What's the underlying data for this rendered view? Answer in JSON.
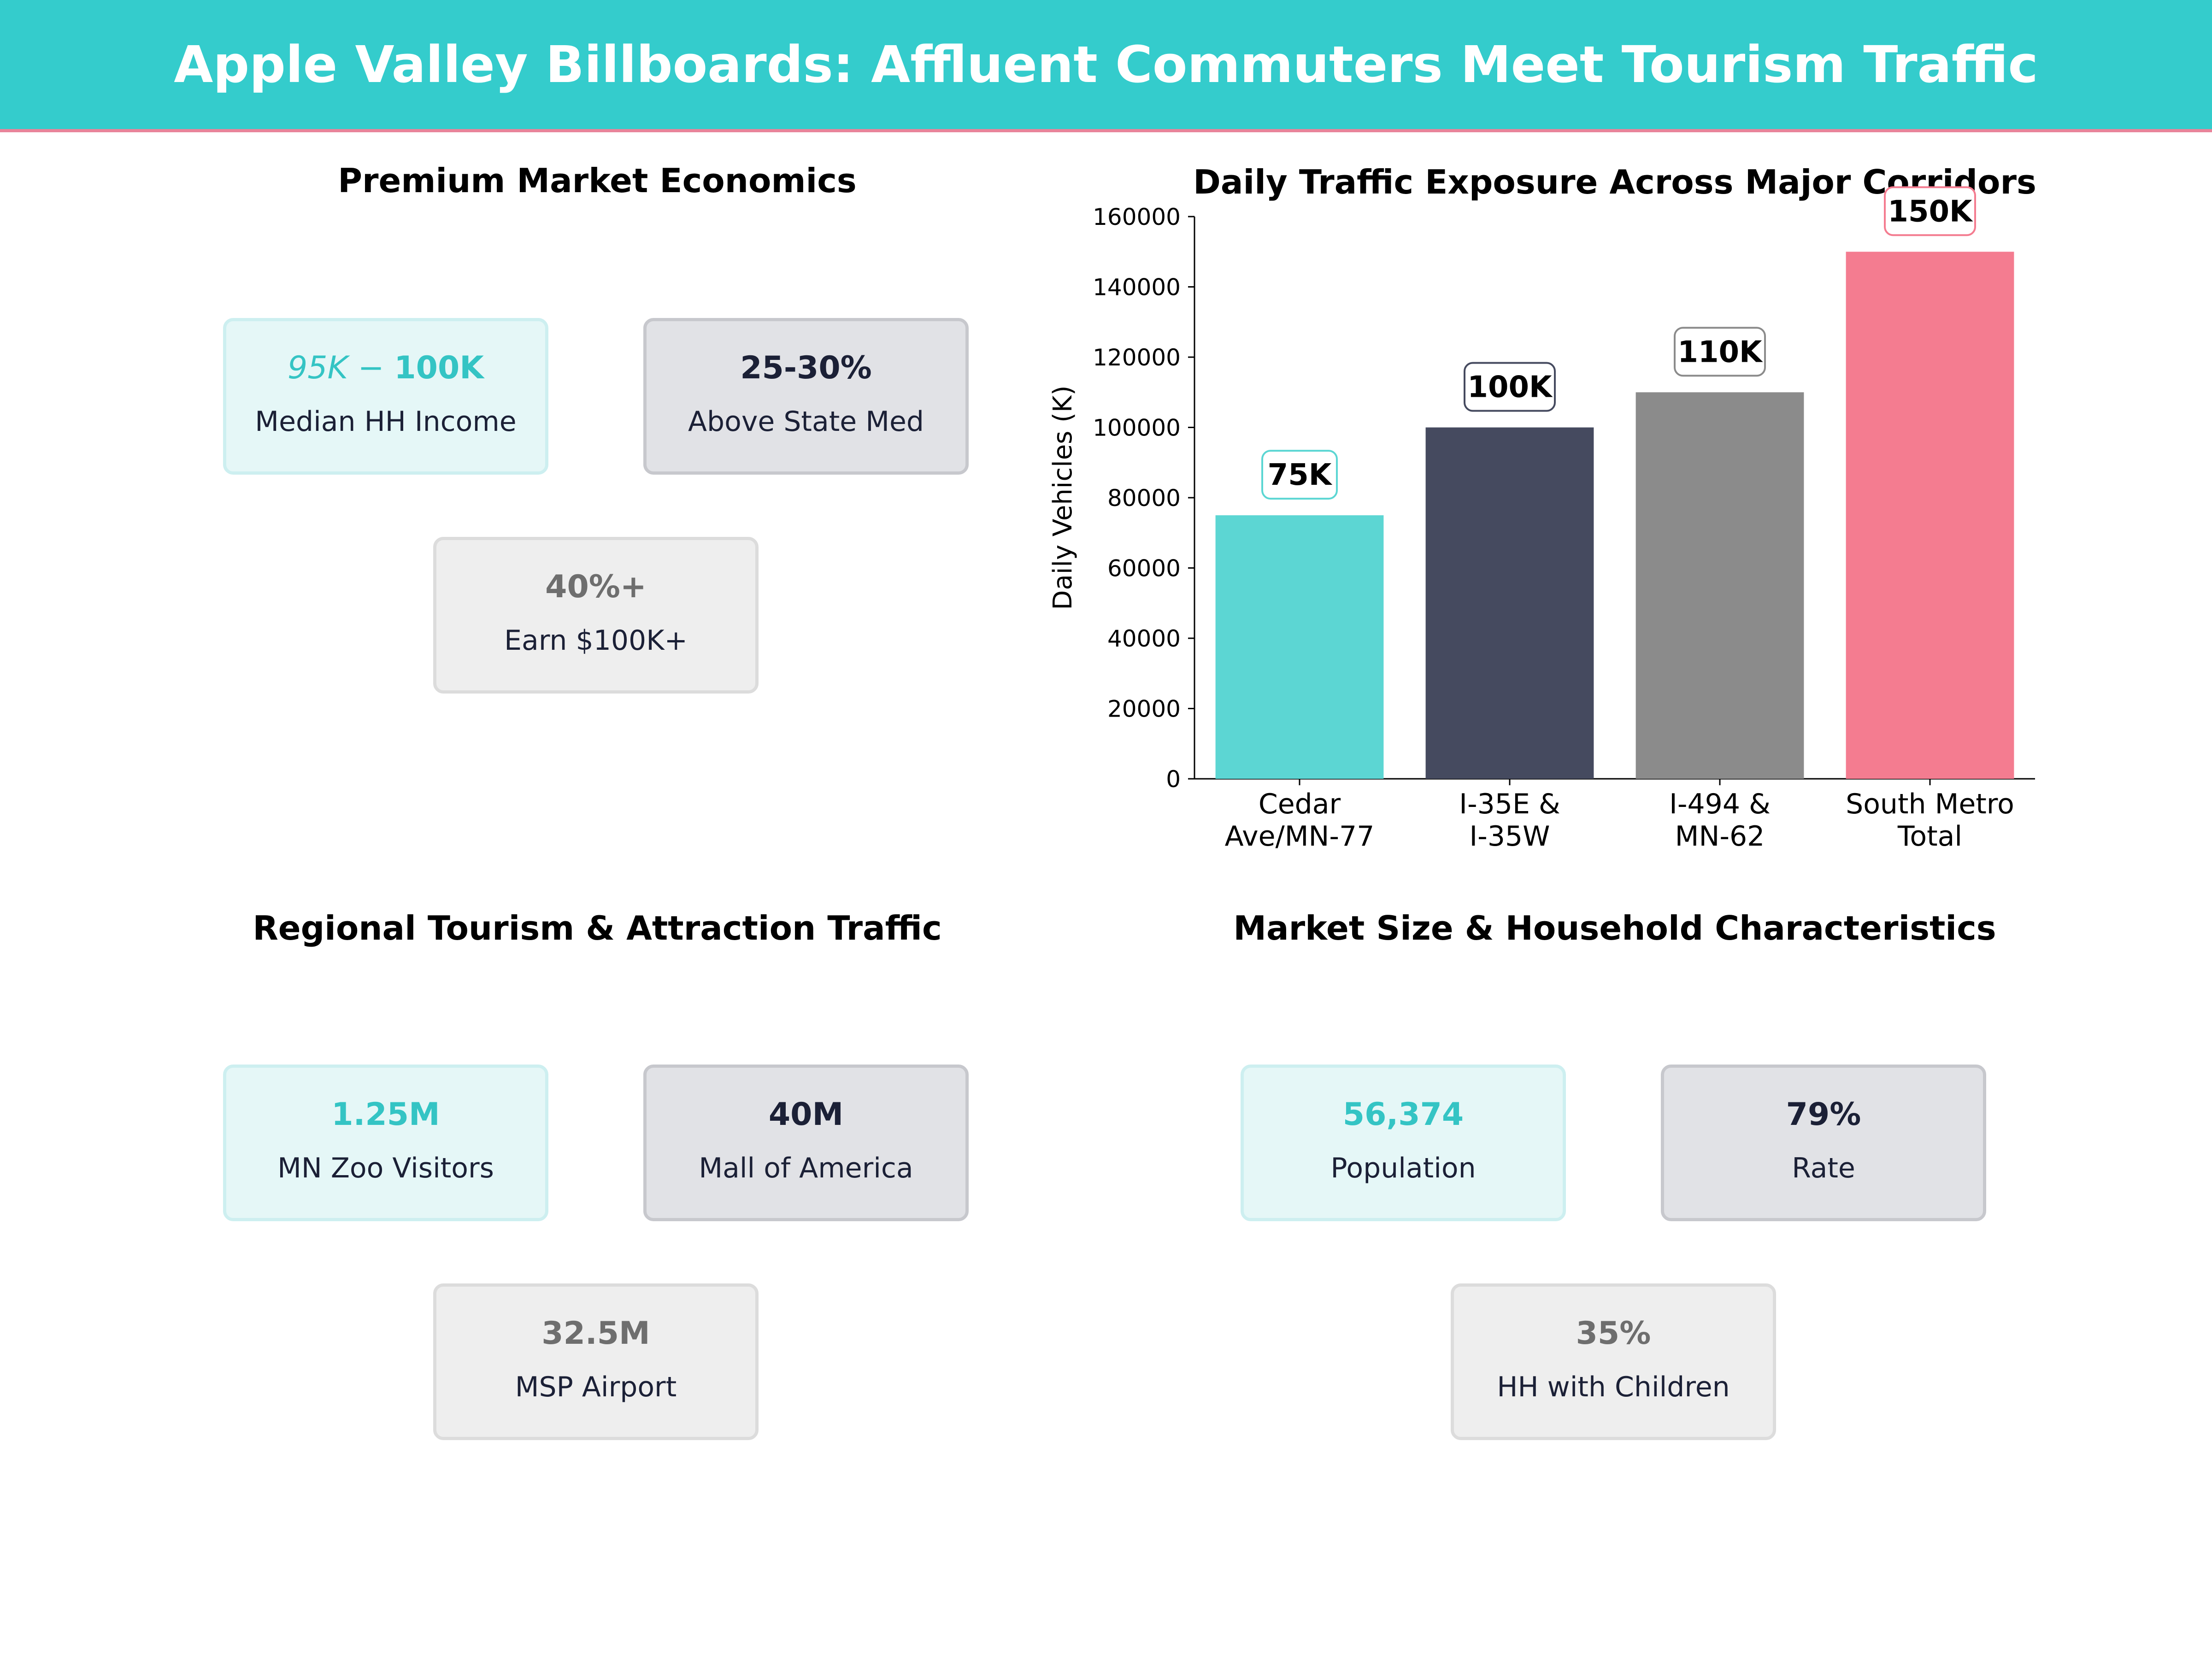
{
  "header": {
    "title": "Apple Valley Billboards: Affluent Commuters Meet Tourism Traffic"
  },
  "economics": {
    "title": "Premium Market Economics",
    "cards": [
      {
        "value_a": "95K",
        "value_b": "100K",
        "label": "Median HH Income"
      },
      {
        "value": "25-30%",
        "label": "Above State Med"
      },
      {
        "value": "40%+",
        "label": "Earn $100K+"
      }
    ]
  },
  "tourism": {
    "title": "Regional Tourism & Attraction Traffic",
    "cards": [
      {
        "value": "1.25M",
        "label": "MN Zoo Visitors"
      },
      {
        "value": "40M",
        "label": "Mall of America"
      },
      {
        "value": "32.5M",
        "label": "MSP Airport"
      }
    ]
  },
  "market": {
    "title": "Market Size & Household Characteristics",
    "cards": [
      {
        "value": "56,374",
        "label": "Population"
      },
      {
        "value": "79%",
        "label": "Rate"
      },
      {
        "value": "35%",
        "label": "HH with Children"
      }
    ]
  },
  "colors": {
    "teal": "#5cd6d3",
    "navy": "#454a5f",
    "gray": "#8b8b8b",
    "pink": "#f47c90"
  },
  "chart_data": {
    "type": "bar",
    "title": "Daily Traffic Exposure Across Major Corridors",
    "xlabel": "",
    "ylabel": "Daily Vehicles (K)",
    "ylim": [
      0,
      160000
    ],
    "yticks": [
      0,
      20000,
      40000,
      60000,
      80000,
      100000,
      120000,
      140000,
      160000
    ],
    "grid": false,
    "categories": [
      [
        "Cedar",
        "Ave/MN-77"
      ],
      [
        "I-35E &",
        "I-35W"
      ],
      [
        "I-494 &",
        "MN-62"
      ],
      [
        "South Metro",
        "Total"
      ]
    ],
    "values": [
      75000,
      100000,
      110000,
      150000
    ],
    "data_labels": [
      "75K",
      "100K",
      "110K",
      "150K"
    ],
    "bar_colors": [
      "#5cd6d3",
      "#454a5f",
      "#8b8b8b",
      "#f47c90"
    ],
    "label_border_colors": [
      "#5cd6d3",
      "#454a5f",
      "#8b8b8b",
      "#f47c90"
    ]
  }
}
